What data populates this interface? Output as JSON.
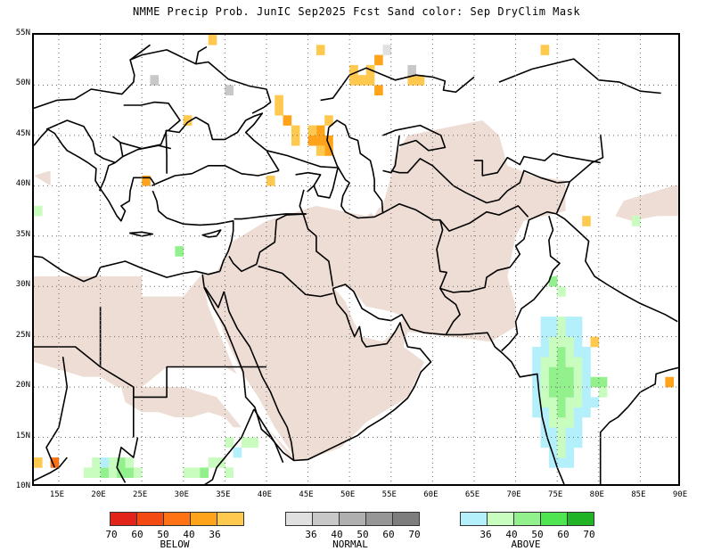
{
  "title": "NMME Precip Prob. JunIC  Sep2025 Fcst  Sand color: Sep DryClim Mask",
  "map": {
    "lon_range": [
      12,
      90
    ],
    "lat_range": [
      10,
      55
    ],
    "grid": "dotted",
    "lat_ticks": [
      "55N",
      "50N",
      "45N",
      "40N",
      "35N",
      "30N",
      "25N",
      "20N",
      "15N",
      "10N"
    ],
    "lat_values": [
      55,
      50,
      45,
      40,
      35,
      30,
      25,
      20,
      15,
      10
    ],
    "lon_ticks": [
      "15E",
      "20E",
      "25E",
      "30E",
      "35E",
      "40E",
      "45E",
      "50E",
      "55E",
      "60E",
      "65E",
      "70E",
      "75E",
      "80E",
      "85E",
      "90E"
    ],
    "lon_values": [
      15,
      20,
      25,
      30,
      35,
      40,
      45,
      50,
      55,
      60,
      65,
      70,
      75,
      80,
      85,
      90
    ],
    "colors": {
      "dry_mask": "#eeddd4",
      "below": [
        "#e2231a",
        "#f34a13",
        "#ff7314",
        "#ffa31a",
        "#ffc84f"
      ],
      "normal": [
        "#e0e0e0",
        "#c8c8c8",
        "#afafaf",
        "#969696",
        "#7d7d7d"
      ],
      "above": [
        "#b3f0fb",
        "#c9fcbf",
        "#93f18d",
        "#4ee550",
        "#21b326"
      ]
    }
  },
  "legend": {
    "below": {
      "name": "BELOW",
      "values": [
        "70",
        "60",
        "50",
        "40",
        "36"
      ]
    },
    "normal": {
      "name": "NORMAL",
      "values": [
        "36",
        "40",
        "50",
        "60",
        "70"
      ]
    },
    "above": {
      "name": "ABOVE",
      "values": [
        "36",
        "40",
        "50",
        "60",
        "70"
      ]
    }
  }
}
